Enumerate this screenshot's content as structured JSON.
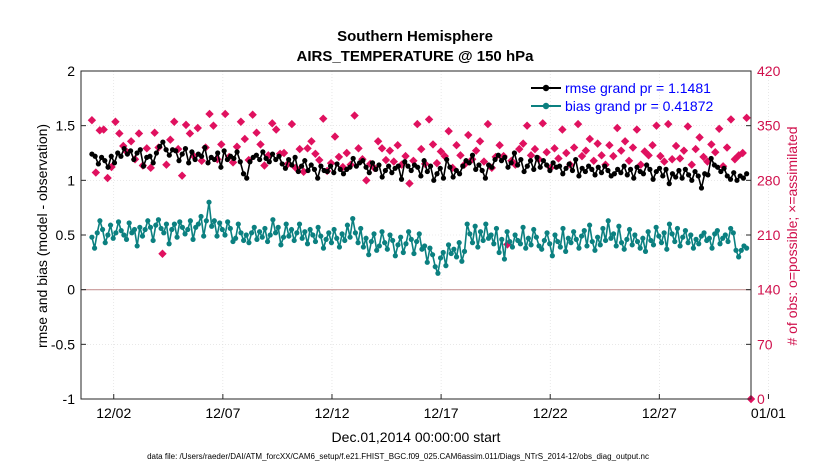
{
  "chart_data": {
    "type": "line",
    "title": "Southern Hemisphere",
    "subtitle": "AIRS_TEMPERATURE @ 150 hPa",
    "xlabel": "Dec.01,2014 00:00:00 start",
    "ylabel": "rmse and bias (model - observation)",
    "ylabel_right": "# of obs: o=possible; ×=assimilated",
    "footer": "data file: /Users/raeder/DAI/ATM_forcXX/CAM6_setup/f.e21.FHIST_BGC.f09_025.CAM6assim.011/Diags_NTrS_2014-12/obs_diag_output.nc",
    "xlim": [
      0.5,
      31.2
    ],
    "ylim": [
      -1,
      2
    ],
    "ylim_right": [
      0,
      420
    ],
    "x_ticks": [
      2,
      7,
      12,
      17,
      22,
      27,
      32
    ],
    "x_tick_labels": [
      "12/02",
      "12/07",
      "12/12",
      "12/17",
      "12/22",
      "12/27",
      "01/01"
    ],
    "y_ticks": [
      -1,
      -0.5,
      0,
      0.5,
      1,
      1.5,
      2
    ],
    "y_tick_labels": [
      "-1",
      "-0.5",
      "0",
      "0.5",
      "1",
      "1.5",
      "2"
    ],
    "y_ticks_right": [
      0,
      70,
      140,
      210,
      280,
      350,
      420
    ],
    "y_tick_labels_right": [
      "0",
      "70",
      "140",
      "210",
      "280",
      "350",
      "420"
    ],
    "colors": {
      "rmse": "#000000",
      "bias": "#0b8080",
      "obs": "#e0115f",
      "zero": "#c89898",
      "grid": "#d9d9d9"
    },
    "series": [
      {
        "name": "rmse grand pr = 1.1481",
        "color": "#000000",
        "values": [
          1.24,
          1.22,
          1.15,
          1.21,
          1.18,
          1.12,
          1.22,
          1.16,
          1.25,
          1.22,
          1.29,
          1.24,
          1.27,
          1.19,
          1.25,
          1.28,
          1.13,
          1.21,
          1.22,
          1.16,
          1.25,
          1.31,
          1.35,
          1.28,
          1.23,
          1.28,
          1.27,
          1.18,
          1.24,
          1.29,
          1.16,
          1.26,
          1.19,
          1.24,
          1.22,
          1.3,
          1.16,
          1.21,
          1.19,
          1.25,
          1.12,
          1.27,
          1.19,
          1.22,
          1.2,
          1.26,
          1.17,
          1.06,
          1.02,
          1.17,
          1.21,
          1.23,
          1.19,
          1.26,
          1.2,
          1.17,
          1.24,
          1.19,
          1.22,
          1.15,
          1.11,
          1.19,
          1.14,
          1.21,
          1.08,
          1.13,
          1.18,
          1.09,
          1.14,
          1.1,
          1.02,
          1.13,
          1.09,
          1.08,
          1.13,
          1.07,
          1.15,
          1.1,
          1.06,
          1.1,
          1.12,
          1.2,
          1.13,
          1.16,
          1.18,
          1.12,
          1.07,
          1.16,
          1.1,
          1.14,
          1.03,
          1.09,
          1.13,
          1.07,
          1.11,
          1.13,
          1.01,
          1.17,
          1.13,
          1.09,
          1.14,
          1.12,
          1.04,
          1.18,
          1.08,
          1.13,
          1.0,
          1.06,
          1.11,
          1.02,
          1.19,
          1.12,
          1.03,
          1.09,
          1.06,
          1.13,
          1.18,
          1.16,
          1.23,
          1.1,
          1.14,
          1.09,
          1.02,
          1.14,
          1.12,
          1.19,
          1.23,
          1.18,
          1.21,
          1.12,
          1.16,
          1.25,
          1.14,
          1.19,
          1.08,
          1.13,
          1.18,
          1.1,
          1.21,
          1.12,
          1.18,
          1.14,
          1.09,
          1.16,
          1.12,
          1.13,
          1.06,
          1.11,
          1.15,
          1.09,
          1.19,
          1.04,
          1.11,
          1.08,
          1.13,
          1.1,
          1.05,
          1.12,
          1.07,
          1.13,
          1.09,
          1.04,
          1.06,
          1.1,
          1.07,
          1.13,
          1.05,
          1.1,
          1.02,
          1.12,
          1.08,
          1.06,
          1.14,
          1.1,
          1.01,
          1.08,
          1.11,
          1.04,
          1.1,
          0.97,
          1.06,
          1.03,
          1.09,
          1.02,
          1.1,
          1.05,
          1.0,
          1.08,
          1.04,
          0.93,
          1.06,
          1.05,
          1.2,
          1.14,
          1.12,
          1.08,
          1.11,
          1.04,
          1.01,
          1.07,
          1.0,
          1.04,
          1.02,
          1.06
        ]
      },
      {
        "name": "bias grand pr = 0.41872",
        "color": "#0b8080",
        "values": [
          0.48,
          0.38,
          0.52,
          0.63,
          0.55,
          0.43,
          0.5,
          0.59,
          0.47,
          0.52,
          0.62,
          0.54,
          0.5,
          0.46,
          0.61,
          0.52,
          0.55,
          0.4,
          0.57,
          0.49,
          0.55,
          0.63,
          0.57,
          0.45,
          0.59,
          0.64,
          0.56,
          0.52,
          0.6,
          0.42,
          0.55,
          0.6,
          0.48,
          0.62,
          0.57,
          0.51,
          0.55,
          0.63,
          0.46,
          0.57,
          0.6,
          0.67,
          0.49,
          0.63,
          0.8,
          0.58,
          0.63,
          0.49,
          0.61,
          0.55,
          0.5,
          0.62,
          0.56,
          0.44,
          0.47,
          0.6,
          0.52,
          0.45,
          0.5,
          0.43,
          0.52,
          0.57,
          0.46,
          0.53,
          0.48,
          0.56,
          0.44,
          0.5,
          0.64,
          0.52,
          0.57,
          0.41,
          0.48,
          0.6,
          0.49,
          0.55,
          0.45,
          0.52,
          0.6,
          0.47,
          0.53,
          0.42,
          0.55,
          0.5,
          0.44,
          0.57,
          0.49,
          0.38,
          0.46,
          0.52,
          0.43,
          0.55,
          0.47,
          0.39,
          0.51,
          0.45,
          0.59,
          0.48,
          0.65,
          0.52,
          0.43,
          0.56,
          0.39,
          0.47,
          0.32,
          0.44,
          0.51,
          0.36,
          0.4,
          0.53,
          0.43,
          0.37,
          0.5,
          0.45,
          0.31,
          0.41,
          0.48,
          0.34,
          0.42,
          0.53,
          0.46,
          0.33,
          0.44,
          0.51,
          0.37,
          0.4,
          0.25,
          0.38,
          0.32,
          0.21,
          0.15,
          0.29,
          0.34,
          0.22,
          0.41,
          0.33,
          0.37,
          0.3,
          0.43,
          0.26,
          0.35,
          0.6,
          0.51,
          0.43,
          0.58,
          0.39,
          0.53,
          0.45,
          0.6,
          0.47,
          0.5,
          0.42,
          0.56,
          0.34,
          0.46,
          0.28,
          0.53,
          0.44,
          0.39,
          0.5,
          0.45,
          0.42,
          0.57,
          0.38,
          0.47,
          0.41,
          0.55,
          0.48,
          0.4,
          0.37,
          0.45,
          0.52,
          0.42,
          0.31,
          0.5,
          0.44,
          0.39,
          0.56,
          0.35,
          0.47,
          0.43,
          0.53,
          0.46,
          0.38,
          0.49,
          0.54,
          0.4,
          0.59,
          0.44,
          0.36,
          0.48,
          0.41,
          0.56,
          0.45,
          0.63,
          0.47,
          0.51,
          0.4,
          0.58,
          0.43,
          0.37,
          0.46,
          0.55,
          0.41,
          0.5,
          0.44,
          0.38,
          0.47,
          0.35,
          0.53,
          0.45,
          0.41,
          0.57,
          0.49,
          0.43,
          0.52,
          0.37,
          0.6,
          0.51,
          0.44,
          0.56,
          0.4,
          0.48,
          0.54,
          0.43,
          0.5,
          0.38,
          0.46,
          0.42,
          0.49,
          0.52,
          0.45,
          0.47,
          0.38,
          0.51,
          0.54,
          0.42,
          0.47,
          0.5,
          0.44,
          0.56,
          0.52,
          0.36,
          0.3,
          0.36,
          0.4,
          0.38
        ]
      },
      {
        "name": "observations",
        "axis": "right",
        "color": "#e0115f",
        "values": [
          357,
          290,
          344,
          345,
          283,
          297,
          355,
          340,
          324,
          316,
          330,
          307,
          340,
          299,
          321,
          296,
          341,
          322,
          186,
          300,
          332,
          355,
          320,
          286,
          351,
          340,
          311,
          347,
          305,
          322,
          365,
          350,
          307,
          326,
          365,
          310,
          303,
          323,
          355,
          333,
          306,
          364,
          341,
          326,
          299,
          312,
          353,
          345,
          314,
          315,
          301,
          352,
          296,
          320,
          291,
          321,
          330,
          314,
          306,
          359,
          292,
          302,
          336,
          310,
          297,
          315,
          300,
          363,
          321,
          307,
          280,
          301,
          296,
          330,
          321,
          306,
          318,
          304,
          325,
          300,
          311,
          276,
          305,
          352,
          320,
          301,
          358,
          326,
          302,
          317,
          311,
          343,
          296,
          325,
          312,
          300,
          338,
          307,
          318,
          330,
          304,
          352,
          296,
          310,
          325,
          311,
          198,
          305,
          300,
          320,
          327,
          350,
          312,
          320,
          307,
          353,
          316,
          296,
          321,
          308,
          345,
          315,
          300,
          322,
          352,
          311,
          318,
          333,
          305,
          327,
          312,
          300,
          325,
          311,
          347,
          318,
          330,
          305,
          322,
          345,
          300,
          317,
          312,
          325,
          350,
          311,
          304,
          352,
          307,
          324,
          308,
          318,
          349,
          300,
          320,
          335,
          310,
          304,
          326,
          316,
          346,
          298,
          322,
          358,
          307,
          312,
          315,
          360
        ]
      }
    ]
  }
}
